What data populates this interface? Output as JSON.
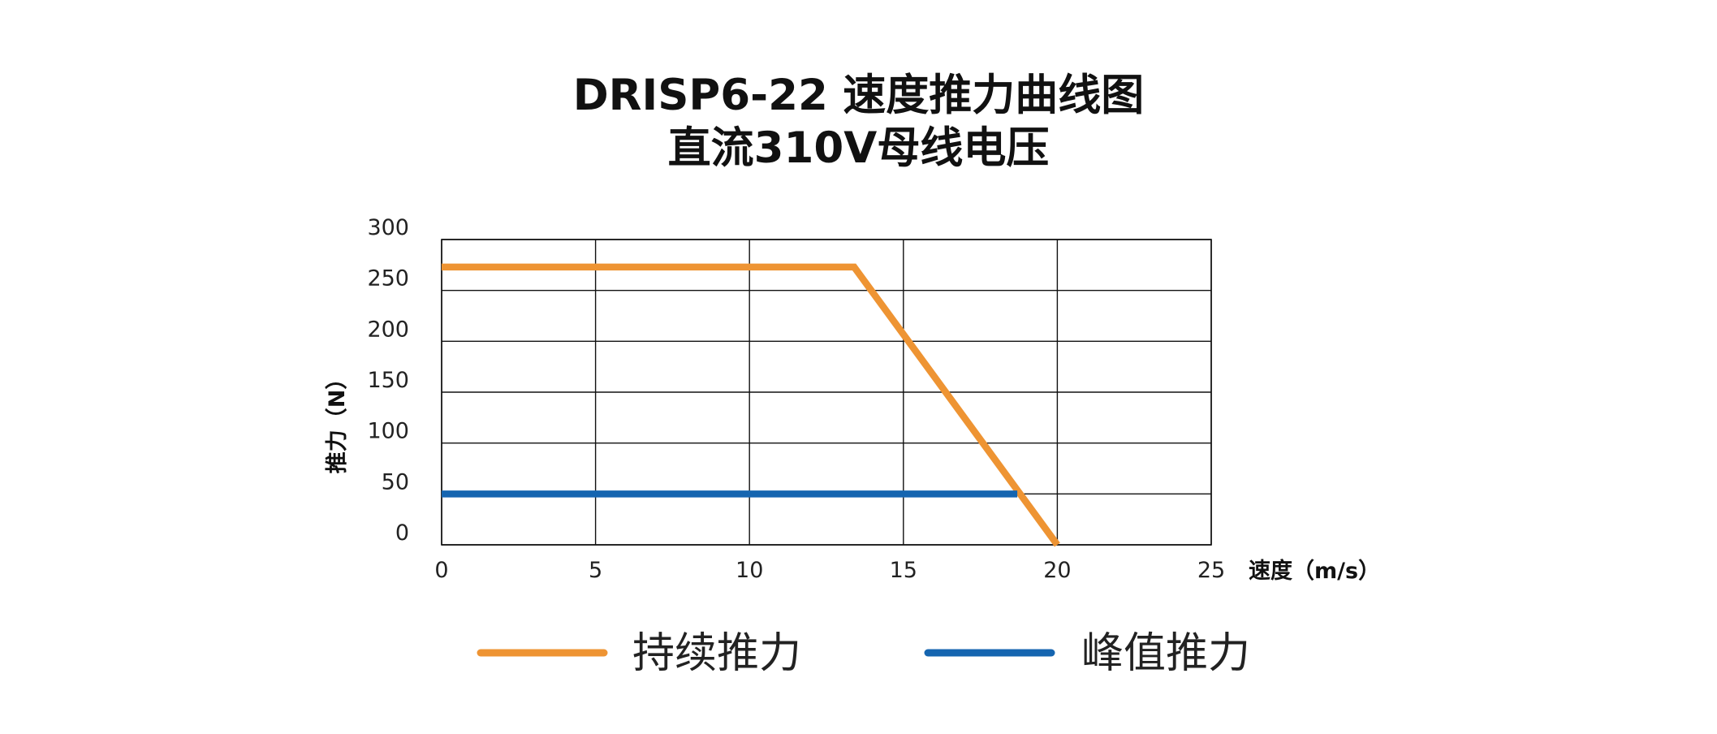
{
  "page": {
    "title_line1": "DRISP6-22 速度推力曲线图",
    "title_line2": "直流310V母线电压"
  },
  "chart_data": {
    "type": "line",
    "title": "DRISP6-22 速度推力曲线图",
    "subtitle": "直流310V母线电压",
    "xlabel": "速度（m/s）",
    "ylabel": "推力（N）",
    "xlim": [
      0,
      25
    ],
    "ylim": [
      0,
      300
    ],
    "x_ticks": [
      "0",
      "5",
      "10",
      "15",
      "20",
      "25"
    ],
    "y_ticks": [
      "0",
      "50",
      "100",
      "150",
      "200",
      "250",
      "300"
    ],
    "grid": true,
    "legend_position": "bottom",
    "series": [
      {
        "name": "持续推力",
        "color": "#EE9433",
        "points": [
          [
            0,
            273
          ],
          [
            13.4,
            273
          ],
          [
            20,
            0
          ]
        ]
      },
      {
        "name": "峰值推力",
        "color": "#1565B0",
        "points": [
          [
            0,
            50
          ],
          [
            18.7,
            50
          ]
        ]
      }
    ]
  }
}
